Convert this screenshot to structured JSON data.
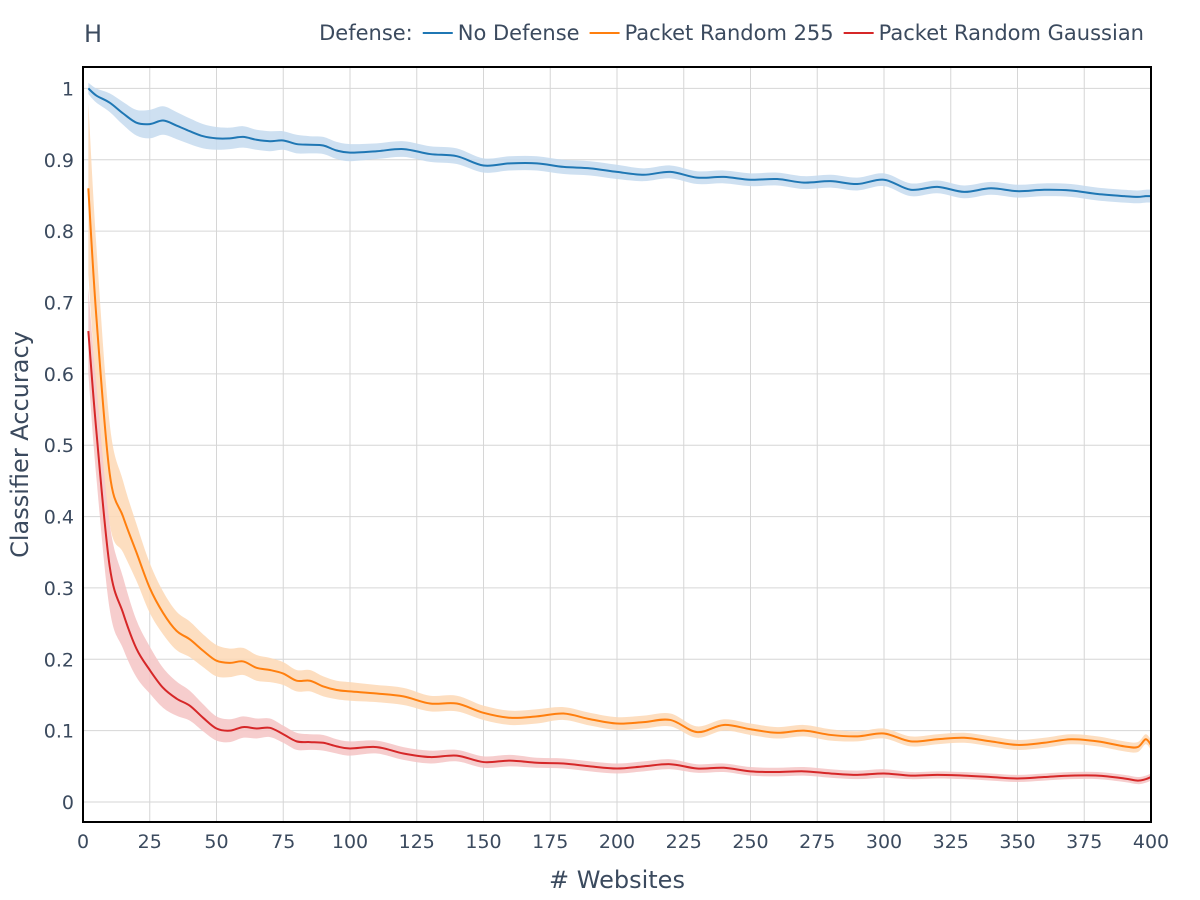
{
  "panel_label": "H",
  "chart_data": {
    "type": "line",
    "title": "",
    "xlabel": "# Websites",
    "ylabel": "Classifier Accuracy",
    "xlim": [
      0,
      400
    ],
    "ylim": [
      -0.028,
      1.03
    ],
    "x_ticks": [
      0,
      25,
      50,
      75,
      100,
      125,
      150,
      175,
      200,
      225,
      250,
      275,
      300,
      325,
      350,
      375,
      400
    ],
    "y_ticks": [
      0,
      0.1,
      0.2,
      0.3,
      0.4,
      0.5,
      0.6,
      0.7,
      0.8,
      0.9,
      1
    ],
    "y_tick_labels": [
      "0",
      "0.1",
      "0.2",
      "0.3",
      "0.4",
      "0.5",
      "0.6",
      "0.7",
      "0.8",
      "0.9",
      "1"
    ],
    "grid": true,
    "legend": {
      "title": "Defense:",
      "placement": "top-right"
    },
    "x": [
      2,
      5,
      10,
      15,
      20,
      25,
      30,
      35,
      40,
      45,
      50,
      55,
      60,
      65,
      70,
      75,
      80,
      85,
      90,
      95,
      100,
      110,
      120,
      130,
      140,
      150,
      160,
      170,
      180,
      190,
      200,
      210,
      220,
      230,
      240,
      250,
      260,
      270,
      280,
      290,
      300,
      310,
      320,
      330,
      340,
      350,
      360,
      370,
      380,
      390,
      395,
      398,
      400
    ],
    "series": [
      {
        "name": "No Defense",
        "color": "#1f77b4",
        "band_color": "#c6dbef",
        "values": [
          1.0,
          0.99,
          0.98,
          0.965,
          0.952,
          0.95,
          0.955,
          0.948,
          0.94,
          0.933,
          0.93,
          0.93,
          0.932,
          0.928,
          0.926,
          0.927,
          0.922,
          0.921,
          0.92,
          0.913,
          0.91,
          0.912,
          0.915,
          0.908,
          0.905,
          0.892,
          0.895,
          0.895,
          0.89,
          0.888,
          0.883,
          0.879,
          0.883,
          0.875,
          0.876,
          0.872,
          0.873,
          0.868,
          0.87,
          0.866,
          0.872,
          0.858,
          0.862,
          0.855,
          0.86,
          0.856,
          0.858,
          0.857,
          0.852,
          0.849,
          0.848,
          0.849,
          0.849
        ],
        "band_halfwidth": [
          0.008,
          0.01,
          0.013,
          0.016,
          0.018,
          0.02,
          0.02,
          0.019,
          0.018,
          0.017,
          0.016,
          0.015,
          0.015,
          0.014,
          0.014,
          0.013,
          0.013,
          0.012,
          0.012,
          0.012,
          0.012,
          0.011,
          0.011,
          0.011,
          0.011,
          0.01,
          0.01,
          0.01,
          0.01,
          0.01,
          0.01,
          0.009,
          0.009,
          0.009,
          0.009,
          0.009,
          0.009,
          0.009,
          0.009,
          0.009,
          0.009,
          0.009,
          0.009,
          0.009,
          0.009,
          0.009,
          0.009,
          0.009,
          0.009,
          0.009,
          0.009,
          0.009,
          0.009
        ]
      },
      {
        "name": "Packet Random 255",
        "color": "#ff7f0e",
        "band_color": "#fdd8b5",
        "values": [
          0.86,
          0.68,
          0.46,
          0.4,
          0.35,
          0.3,
          0.265,
          0.24,
          0.228,
          0.212,
          0.198,
          0.195,
          0.197,
          0.188,
          0.185,
          0.18,
          0.17,
          0.17,
          0.162,
          0.157,
          0.155,
          0.152,
          0.148,
          0.138,
          0.138,
          0.125,
          0.118,
          0.12,
          0.124,
          0.116,
          0.11,
          0.112,
          0.115,
          0.098,
          0.108,
          0.102,
          0.097,
          0.1,
          0.094,
          0.092,
          0.096,
          0.085,
          0.088,
          0.09,
          0.085,
          0.08,
          0.083,
          0.088,
          0.085,
          0.078,
          0.077,
          0.088,
          0.08
        ],
        "band_halfwidth": [
          0.12,
          0.1,
          0.07,
          0.05,
          0.04,
          0.035,
          0.03,
          0.027,
          0.025,
          0.023,
          0.022,
          0.02,
          0.019,
          0.018,
          0.017,
          0.016,
          0.015,
          0.015,
          0.014,
          0.013,
          0.013,
          0.012,
          0.012,
          0.011,
          0.011,
          0.01,
          0.01,
          0.01,
          0.009,
          0.009,
          0.009,
          0.009,
          0.009,
          0.008,
          0.008,
          0.008,
          0.008,
          0.008,
          0.008,
          0.007,
          0.007,
          0.007,
          0.007,
          0.007,
          0.007,
          0.007,
          0.007,
          0.007,
          0.007,
          0.007,
          0.007,
          0.007,
          0.007
        ]
      },
      {
        "name": "Packet Random Gaussian",
        "color": "#d62728",
        "band_color": "#f4c4c4",
        "values": [
          0.66,
          0.52,
          0.33,
          0.265,
          0.215,
          0.185,
          0.16,
          0.145,
          0.135,
          0.118,
          0.103,
          0.1,
          0.105,
          0.103,
          0.104,
          0.095,
          0.085,
          0.084,
          0.083,
          0.078,
          0.075,
          0.077,
          0.068,
          0.063,
          0.065,
          0.056,
          0.058,
          0.055,
          0.054,
          0.05,
          0.047,
          0.05,
          0.053,
          0.047,
          0.048,
          0.043,
          0.042,
          0.043,
          0.04,
          0.038,
          0.04,
          0.037,
          0.038,
          0.037,
          0.035,
          0.033,
          0.035,
          0.037,
          0.037,
          0.033,
          0.03,
          0.032,
          0.035
        ],
        "band_halfwidth": [
          0.06,
          0.065,
          0.06,
          0.05,
          0.04,
          0.033,
          0.028,
          0.024,
          0.021,
          0.019,
          0.017,
          0.016,
          0.015,
          0.014,
          0.013,
          0.012,
          0.012,
          0.011,
          0.011,
          0.01,
          0.01,
          0.009,
          0.009,
          0.009,
          0.008,
          0.008,
          0.008,
          0.007,
          0.007,
          0.007,
          0.007,
          0.007,
          0.007,
          0.006,
          0.006,
          0.006,
          0.006,
          0.006,
          0.006,
          0.006,
          0.006,
          0.005,
          0.005,
          0.005,
          0.005,
          0.005,
          0.005,
          0.005,
          0.005,
          0.005,
          0.005,
          0.005,
          0.005
        ]
      }
    ]
  }
}
